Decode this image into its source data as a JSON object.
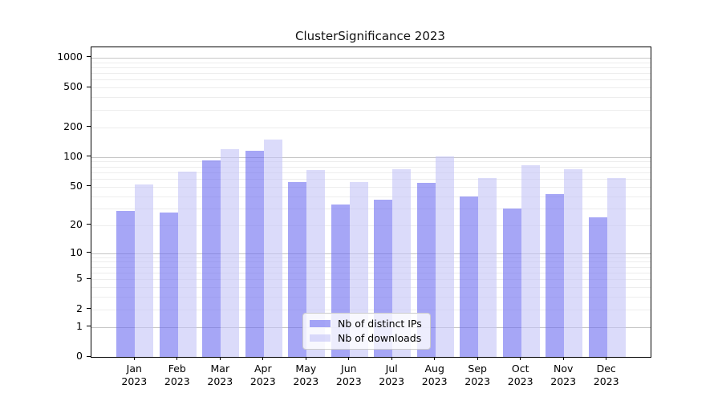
{
  "title": "ClusterSignificance 2023",
  "chart_data": {
    "type": "bar",
    "title": "ClusterSignificance 2023",
    "year": "2023",
    "months": [
      "Jan",
      "Feb",
      "Mar",
      "Apr",
      "May",
      "Jun",
      "Jul",
      "Aug",
      "Sep",
      "Oct",
      "Nov",
      "Dec"
    ],
    "categories": [
      "Jan 2023",
      "Feb 2023",
      "Mar 2023",
      "Apr 2023",
      "May 2023",
      "Jun 2023",
      "Jul 2023",
      "Aug 2023",
      "Sep 2023",
      "Oct 2023",
      "Nov 2023",
      "Dec 2023"
    ],
    "series": [
      {
        "name": "Nb of distinct IPs",
        "color": "#6a6af0",
        "values": [
          28,
          27,
          93,
          115,
          56,
          33,
          37,
          55,
          40,
          30,
          42,
          24
        ]
      },
      {
        "name": "Nb of downloads",
        "color": "#c3c3f7",
        "values": [
          53,
          71,
          120,
          150,
          74,
          56,
          75,
          102,
          61,
          83,
          75,
          61
        ]
      }
    ],
    "bar_alpha": 0.6,
    "y_ticks": [
      0,
      1,
      2,
      5,
      10,
      20,
      50,
      100,
      200,
      500,
      1000
    ],
    "y_scale": "log1p",
    "y_max": 1270,
    "ylim": [
      0,
      1270
    ],
    "grid": true,
    "legend_position": "lower-center",
    "xlabel": "",
    "ylabel": ""
  }
}
